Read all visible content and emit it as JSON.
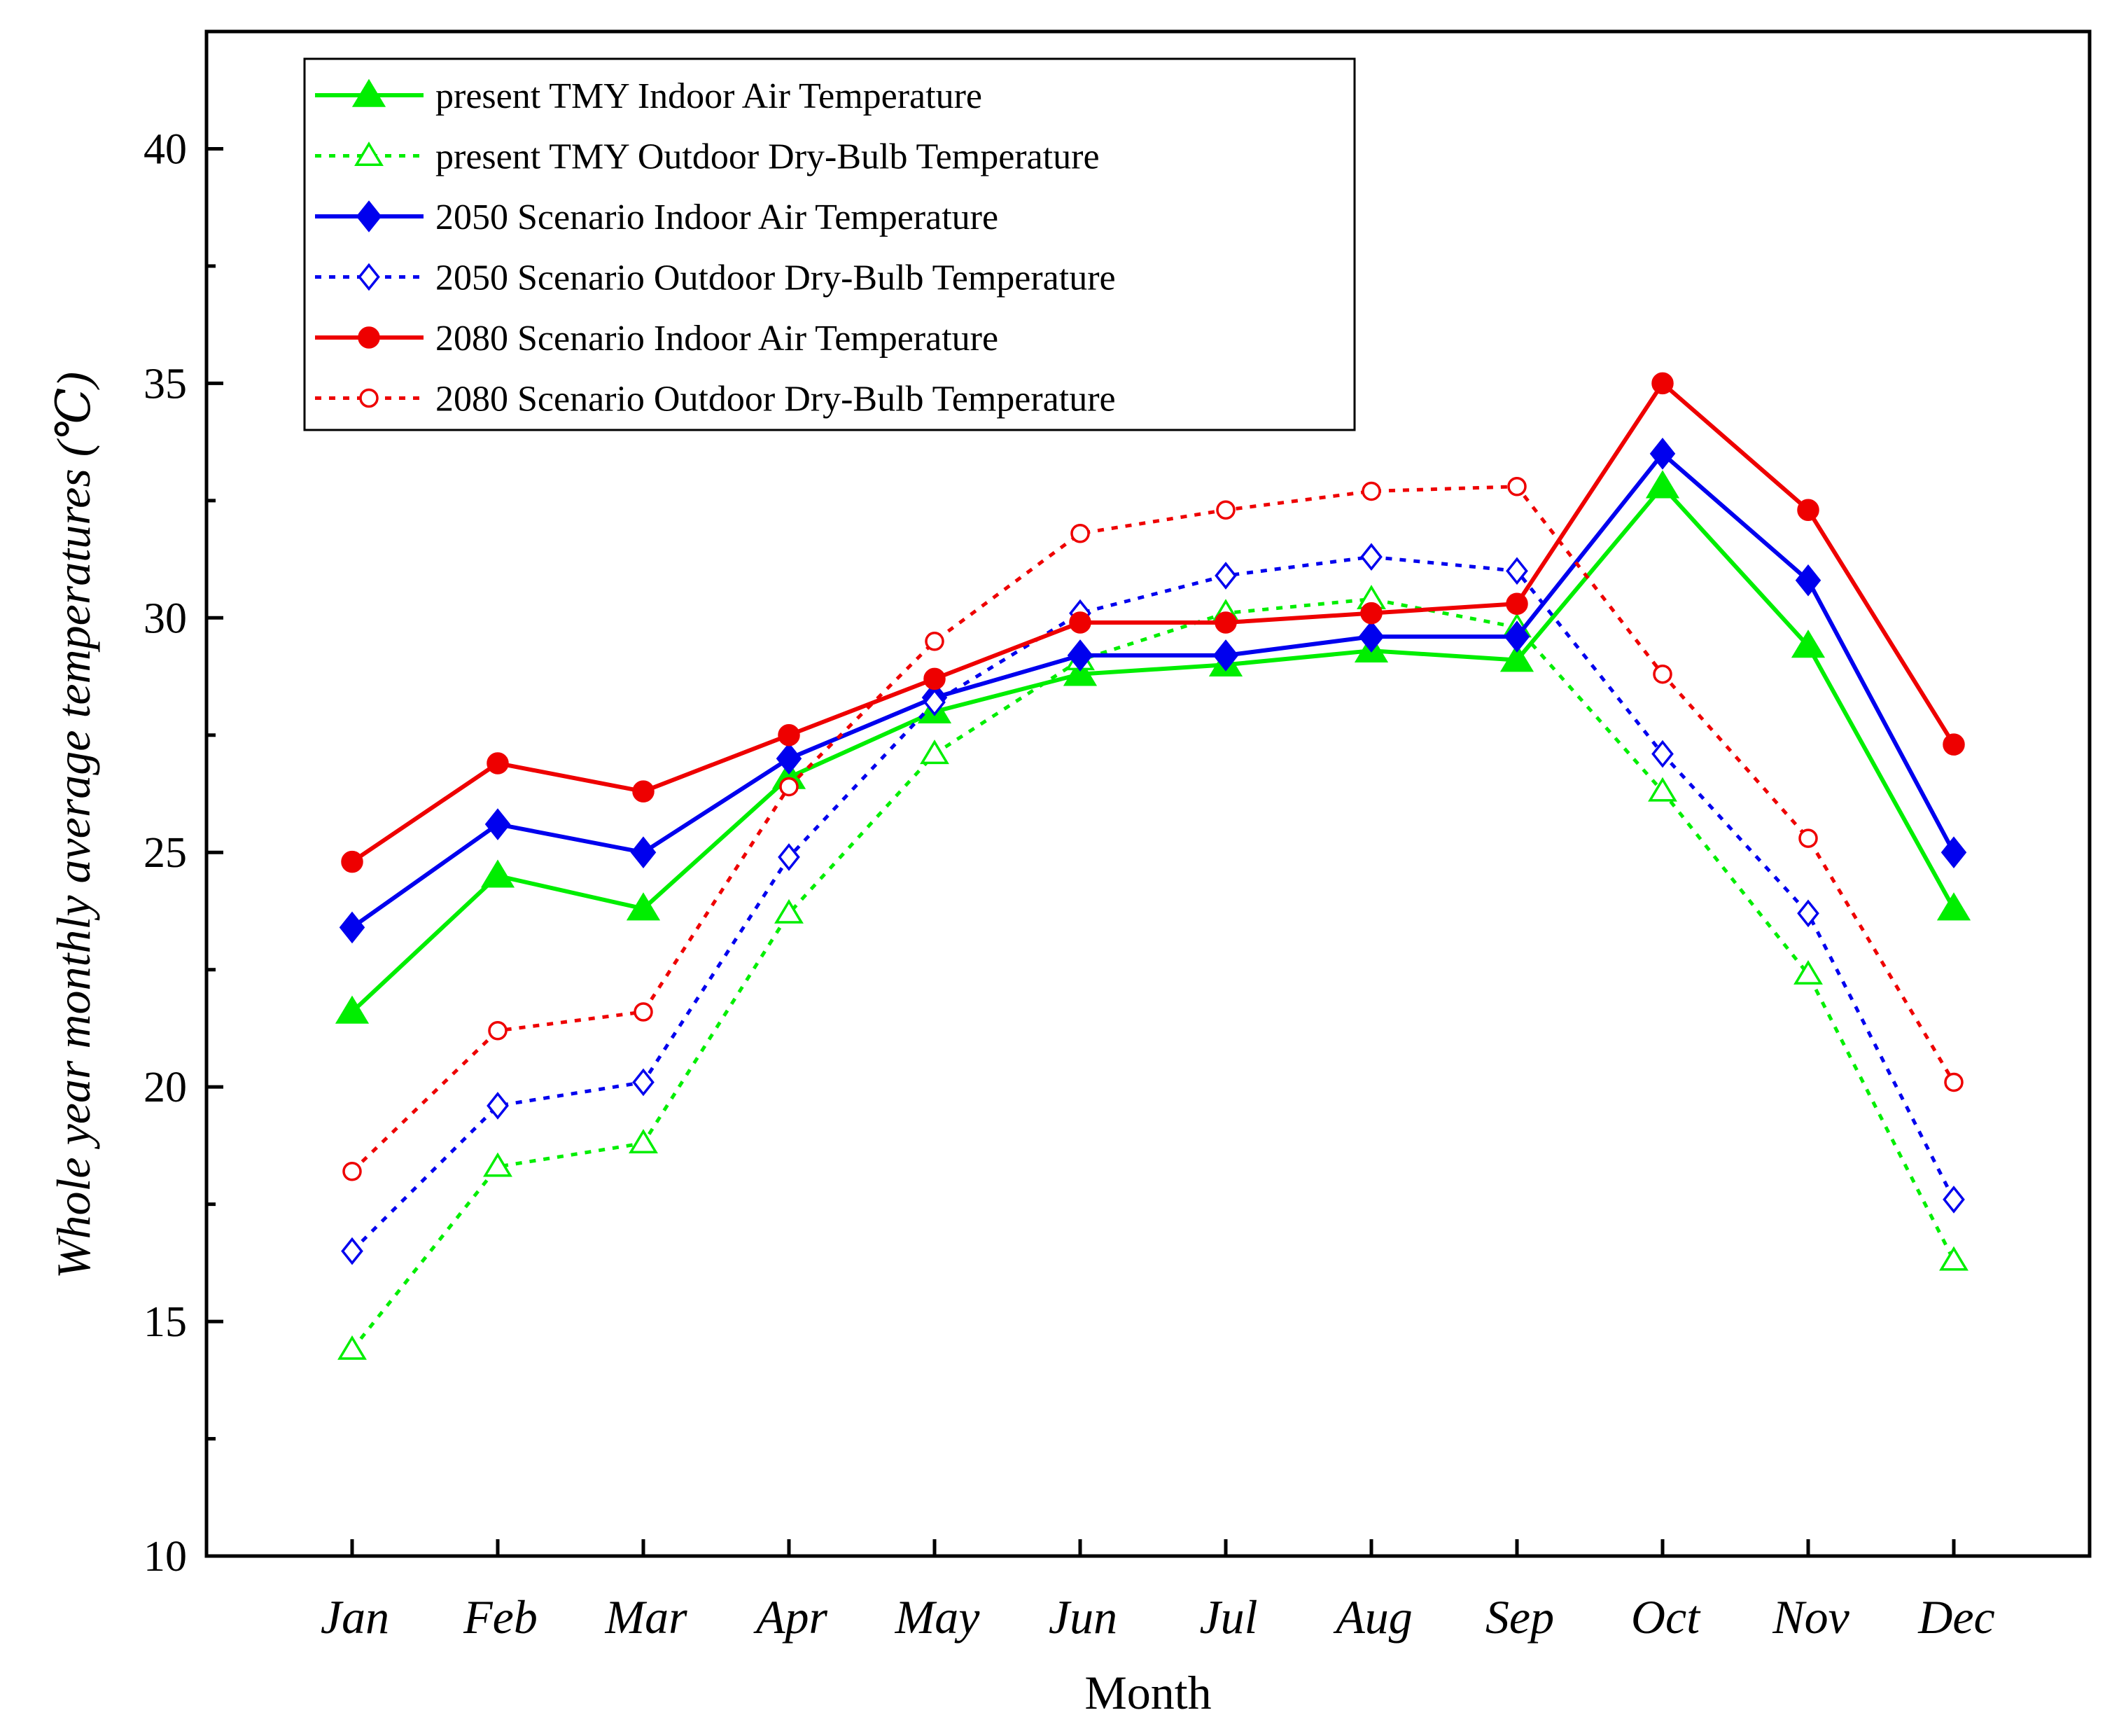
{
  "chart_data": {
    "type": "line",
    "xlabel": "Month",
    "ylabel": "Whole year monthly average temperatures (℃)",
    "categories": [
      "Jan",
      "Feb",
      "Mar",
      "Apr",
      "May",
      "Jun",
      "Jul",
      "Aug",
      "Sep",
      "Oct",
      "Nov",
      "Dec"
    ],
    "ylim": [
      10,
      42.5
    ],
    "yticks": [
      "10",
      "15",
      "20",
      "25",
      "30",
      "35",
      "40"
    ],
    "grid": false,
    "legend_position": "top-left",
    "series": [
      {
        "name": "present TMY Indoor Air Temperature",
        "color": "#00ee00",
        "dash": "solid",
        "marker": "triangle",
        "filled": true,
        "values": [
          21.6,
          24.5,
          23.8,
          26.6,
          28.0,
          28.8,
          29.0,
          29.3,
          29.1,
          32.8,
          29.4,
          23.8
        ]
      },
      {
        "name": "present TMY Outdoor Dry-Bulb Temperature",
        "color": "#00ee00",
        "dash": "dotted",
        "marker": "triangle",
        "filled": false,
        "values": [
          14.4,
          18.3,
          18.8,
          23.7,
          27.1,
          29.1,
          30.1,
          30.4,
          29.8,
          26.3,
          22.4,
          16.3
        ]
      },
      {
        "name": "2050 Scenario Indoor Air Temperature",
        "color": "#0000ee",
        "dash": "solid",
        "marker": "diamond",
        "filled": true,
        "values": [
          23.4,
          25.6,
          25.0,
          27.0,
          28.3,
          29.2,
          29.2,
          29.6,
          29.6,
          33.5,
          30.8,
          25.0
        ]
      },
      {
        "name": "2050 Scenario Outdoor Dry-Bulb Temperature",
        "color": "#0000ee",
        "dash": "dotted",
        "marker": "diamond",
        "filled": false,
        "values": [
          16.5,
          19.6,
          20.1,
          24.9,
          28.2,
          30.1,
          30.9,
          31.3,
          31.0,
          27.1,
          23.7,
          17.6
        ]
      },
      {
        "name": "2080 Scenario Indoor Air Temperature",
        "color": "#ee0000",
        "dash": "solid",
        "marker": "circle",
        "filled": true,
        "values": [
          24.8,
          26.9,
          26.3,
          27.5,
          28.7,
          29.9,
          29.9,
          30.1,
          30.3,
          35.0,
          32.3,
          27.3
        ]
      },
      {
        "name": "2080 Scenario Outdoor Dry-Bulb Temperature",
        "color": "#ee0000",
        "dash": "dotted",
        "marker": "circle",
        "filled": false,
        "values": [
          18.2,
          21.2,
          21.6,
          26.4,
          29.5,
          31.8,
          32.3,
          32.7,
          32.8,
          28.8,
          25.3,
          20.1
        ]
      }
    ]
  }
}
